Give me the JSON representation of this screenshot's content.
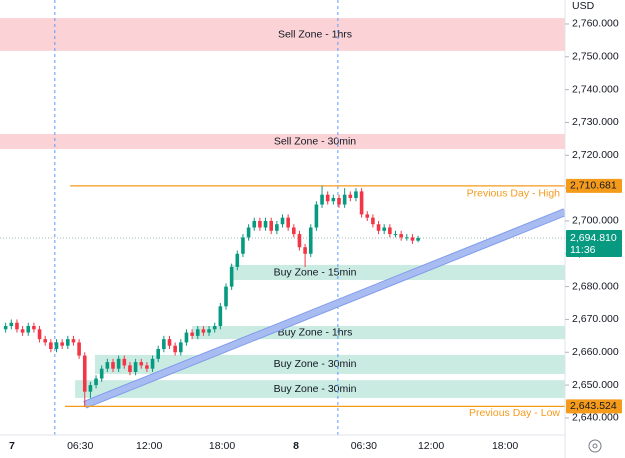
{
  "chart_data": {
    "type": "candlestick",
    "currency": "USD",
    "x": [
      1,
      2,
      3,
      4,
      5,
      6,
      7,
      8,
      9,
      10,
      11,
      12,
      13,
      14,
      15,
      16,
      17,
      18,
      19,
      20,
      21,
      22,
      23,
      24,
      25,
      26,
      27,
      28,
      29,
      30,
      31,
      32,
      33,
      34,
      35,
      36,
      37,
      38,
      39,
      40,
      41,
      42,
      43,
      44,
      45,
      46,
      47,
      48,
      49,
      50,
      51,
      52,
      53,
      54,
      55,
      56,
      57,
      58,
      59,
      60,
      61,
      62,
      63,
      64,
      65,
      66,
      67,
      68,
      69,
      70,
      71,
      72,
      73,
      74
    ],
    "open": [
      2667,
      2668,
      2669,
      2667,
      2666,
      2668,
      2667,
      2664,
      2663,
      2661,
      2663,
      2662,
      2664,
      2663,
      2659,
      2648,
      2650,
      2652,
      2655,
      2657,
      2655,
      2658,
      2656,
      2654,
      2657,
      2656,
      2655,
      2658,
      2661,
      2664,
      2662,
      2660,
      2663,
      2666,
      2665,
      2667,
      2666,
      2667,
      2668,
      2674,
      2680,
      2686,
      2690,
      2695,
      2698,
      2700,
      2698,
      2700,
      2697,
      2699,
      2701,
      2698,
      2696,
      2692,
      2690,
      2698,
      2705,
      2708,
      2706,
      2707,
      2705,
      2708,
      2707,
      2709,
      2702,
      2701,
      2699,
      2697,
      2698,
      2696,
      2696,
      2695,
      2695,
      2694
    ],
    "high": [
      2669,
      2670,
      2670,
      2668,
      2669,
      2669,
      2668,
      2665,
      2664,
      2664,
      2664,
      2665,
      2665,
      2664,
      2660,
      2651,
      2653,
      2656,
      2658,
      2658,
      2659,
      2659,
      2657,
      2658,
      2658,
      2657,
      2659,
      2662,
      2665,
      2665,
      2663,
      2664,
      2667,
      2667,
      2668,
      2668,
      2668,
      2669,
      2675,
      2681,
      2687,
      2691,
      2696,
      2699,
      2701,
      2701,
      2701,
      2701,
      2700,
      2702,
      2702,
      2699,
      2697,
      2693,
      2699,
      2706,
      2710.7,
      2709,
      2708,
      2708,
      2710,
      2709,
      2710,
      2710,
      2703,
      2702,
      2700,
      2699,
      2699,
      2697,
      2697,
      2696,
      2696,
      2695.5
    ],
    "low": [
      2666,
      2667,
      2666,
      2665,
      2665,
      2666,
      2663,
      2662,
      2660,
      2660,
      2661,
      2661,
      2662,
      2658,
      2643.5,
      2646,
      2649,
      2651,
      2654,
      2654,
      2654,
      2655,
      2653,
      2653,
      2655,
      2654,
      2654,
      2657,
      2660,
      2661,
      2659,
      2659,
      2662,
      2664,
      2664,
      2665,
      2665,
      2666,
      2667,
      2673,
      2679,
      2685,
      2689,
      2694,
      2697,
      2697,
      2697,
      2696,
      2696,
      2698,
      2697,
      2695,
      2691,
      2686,
      2689,
      2697,
      2704,
      2705,
      2705,
      2704,
      2704,
      2706,
      2706,
      2701,
      2700,
      2698,
      2696,
      2696,
      2695,
      2695,
      2694,
      2694,
      2693,
      2693.5
    ],
    "close": [
      2668,
      2669,
      2667,
      2666,
      2668,
      2667,
      2664,
      2663,
      2661,
      2663,
      2662,
      2664,
      2663,
      2659,
      2648,
      2650,
      2652,
      2655,
      2657,
      2655,
      2658,
      2656,
      2654,
      2657,
      2656,
      2655,
      2658,
      2661,
      2664,
      2662,
      2660,
      2663,
      2666,
      2665,
      2667,
      2666,
      2667,
      2668,
      2674,
      2680,
      2686,
      2690,
      2695,
      2698,
      2700,
      2698,
      2700,
      2697,
      2699,
      2701,
      2698,
      2696,
      2692,
      2690,
      2698,
      2705,
      2708,
      2706,
      2707,
      2705,
      2708,
      2707,
      2709,
      2702,
      2701,
      2699,
      2697,
      2698,
      2696,
      2696,
      2695,
      2695,
      2694,
      2694.81
    ],
    "up_color": "#089981",
    "down_color": "#f23645",
    "xlim": [
      0,
      100
    ],
    "xticks": [
      {
        "value": 2.1,
        "label": "7"
      },
      {
        "value": 14.2,
        "label": "06:30"
      },
      {
        "value": 26.4,
        "label": "12:00"
      },
      {
        "value": 39.3,
        "label": "18:00"
      },
      {
        "value": 52.4,
        "label": "8"
      },
      {
        "value": 64.4,
        "label": "06:30"
      },
      {
        "value": 76.3,
        "label": "12:00"
      },
      {
        "value": 89.4,
        "label": "18:00"
      }
    ],
    "ylim": [
      2634.8,
      2767.3
    ],
    "yticks": [
      {
        "value": 2640,
        "label": "2,640.000"
      },
      {
        "value": 2650,
        "label": "2,650.000"
      },
      {
        "value": 2660,
        "label": "2,660.000"
      },
      {
        "value": 2670,
        "label": "2,670.000"
      },
      {
        "value": 2680,
        "label": "2,680.000"
      },
      {
        "value": 2690,
        "label": "2,690.000"
      },
      {
        "value": 2700,
        "label": "2,700.000"
      },
      {
        "value": 2710,
        "label": "2,710.000"
      },
      {
        "value": 2720,
        "label": "2,720.000"
      },
      {
        "value": 2730,
        "label": "2,730.000"
      },
      {
        "value": 2740,
        "label": "2,740.000"
      },
      {
        "value": 2750,
        "label": "2,750.000"
      },
      {
        "value": 2760,
        "label": "2,760.000"
      }
    ],
    "zones": [
      {
        "label": "Sell Zone - 1hrs",
        "low": 2751.8,
        "high": 2761.8,
        "x_start": 0,
        "color": "#fbd3d6"
      },
      {
        "label": "Sell Zone - 30min",
        "low": 2721.9,
        "high": 2726.5,
        "x_start": 0,
        "color": "#fbd3d6"
      },
      {
        "label": "Buy Zone - 15min",
        "low": 2682.0,
        "high": 2686.6,
        "x_start": 40.7,
        "color": "#c9ebe2"
      },
      {
        "label": "Buy Zone - 1hrs",
        "low": 2664.0,
        "high": 2668.0,
        "x_start": 34,
        "color": "#c9ebe2"
      },
      {
        "label": "Buy Zone - 30min",
        "low": 2653.4,
        "high": 2659.2,
        "x_start": 16.8,
        "color": "#c9ebe2"
      },
      {
        "label": "Buy Zone - 30min",
        "low": 2646.1,
        "high": 2651.5,
        "x_start": 13.3,
        "color": "#c9ebe2"
      }
    ],
    "levels": [
      {
        "label": "Previous Day - High",
        "value": 2710.681,
        "value_label": "2,710.681",
        "x_start": 12.4,
        "color": "#f59b1c"
      },
      {
        "label": "Previous Day - Low",
        "value": 2643.524,
        "value_label": "2,643.524",
        "x_start": 11.5,
        "color": "#f59b1c"
      }
    ],
    "trend_line": {
      "x": [
        15,
        100
      ],
      "y": [
        2644.0,
        2702.7
      ],
      "color": "#a9bcf2"
    },
    "vlines": [
      9.7,
      59.8
    ],
    "current_price": {
      "value": 2694.81,
      "value_label": "2,694.810",
      "countdown": "11:36",
      "color": "#089981"
    }
  }
}
